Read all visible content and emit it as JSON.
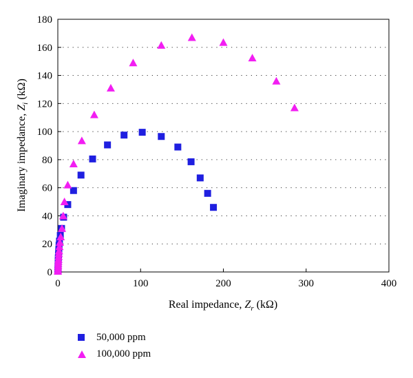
{
  "colors": {
    "series1": "#1f1fe0",
    "series2": "#f21ef2",
    "grid": "#333333"
  },
  "chart_data": {
    "type": "scatter",
    "title": "",
    "xlabel_main": "Real impedance, ",
    "xlabel_var": "Z",
    "xlabel_sub": "r",
    "xlabel_unit": " (kΩ)",
    "ylabel_main": "Imaginary impedance, ",
    "ylabel_var": "Z",
    "ylabel_sub": "i",
    "ylabel_unit": " (kΩ)",
    "xlim": [
      0,
      400
    ],
    "ylim": [
      0,
      180
    ],
    "xticks": [
      0,
      100,
      200,
      300,
      400
    ],
    "yticks": [
      0,
      20,
      40,
      60,
      80,
      100,
      120,
      140,
      160,
      180
    ],
    "grid": "horizontal dotted",
    "legend_position": "bottom-left, below plot",
    "series": [
      {
        "name": "50,000 ppm",
        "marker": "square",
        "points": [
          [
            0.1,
            0.5
          ],
          [
            0.2,
            2
          ],
          [
            0.3,
            4
          ],
          [
            0.4,
            6
          ],
          [
            0.5,
            8
          ],
          [
            0.6,
            10
          ],
          [
            0.8,
            12
          ],
          [
            1,
            14
          ],
          [
            1.2,
            16
          ],
          [
            1.5,
            19
          ],
          [
            2,
            22
          ],
          [
            3,
            26
          ],
          [
            4.5,
            31
          ],
          [
            7,
            39
          ],
          [
            12,
            48
          ],
          [
            19,
            58
          ],
          [
            28,
            69
          ],
          [
            42,
            80.5
          ],
          [
            60,
            90.5
          ],
          [
            80,
            97.5
          ],
          [
            102,
            99.5
          ],
          [
            125,
            96.5
          ],
          [
            145,
            89
          ],
          [
            161,
            78.5
          ],
          [
            172,
            67
          ],
          [
            181,
            56
          ],
          [
            188,
            46
          ]
        ]
      },
      {
        "name": "100,000 ppm",
        "marker": "triangle",
        "points": [
          [
            0.1,
            0.5
          ],
          [
            0.2,
            1.5
          ],
          [
            0.3,
            3
          ],
          [
            0.4,
            4.5
          ],
          [
            0.5,
            6
          ],
          [
            0.6,
            7.5
          ],
          [
            0.8,
            9
          ],
          [
            1,
            11
          ],
          [
            1.2,
            13
          ],
          [
            1.5,
            15
          ],
          [
            2,
            18
          ],
          [
            2.5,
            21
          ],
          [
            3.5,
            25
          ],
          [
            5,
            31
          ],
          [
            6.5,
            40
          ],
          [
            8,
            50
          ],
          [
            12,
            62
          ],
          [
            19,
            77
          ],
          [
            29,
            93.5
          ],
          [
            44,
            112
          ],
          [
            64,
            131
          ],
          [
            91,
            149
          ],
          [
            125,
            161.5
          ],
          [
            162,
            167
          ],
          [
            200,
            163.5
          ],
          [
            235,
            152.5
          ],
          [
            264,
            136
          ],
          [
            286,
            117
          ]
        ]
      }
    ]
  }
}
